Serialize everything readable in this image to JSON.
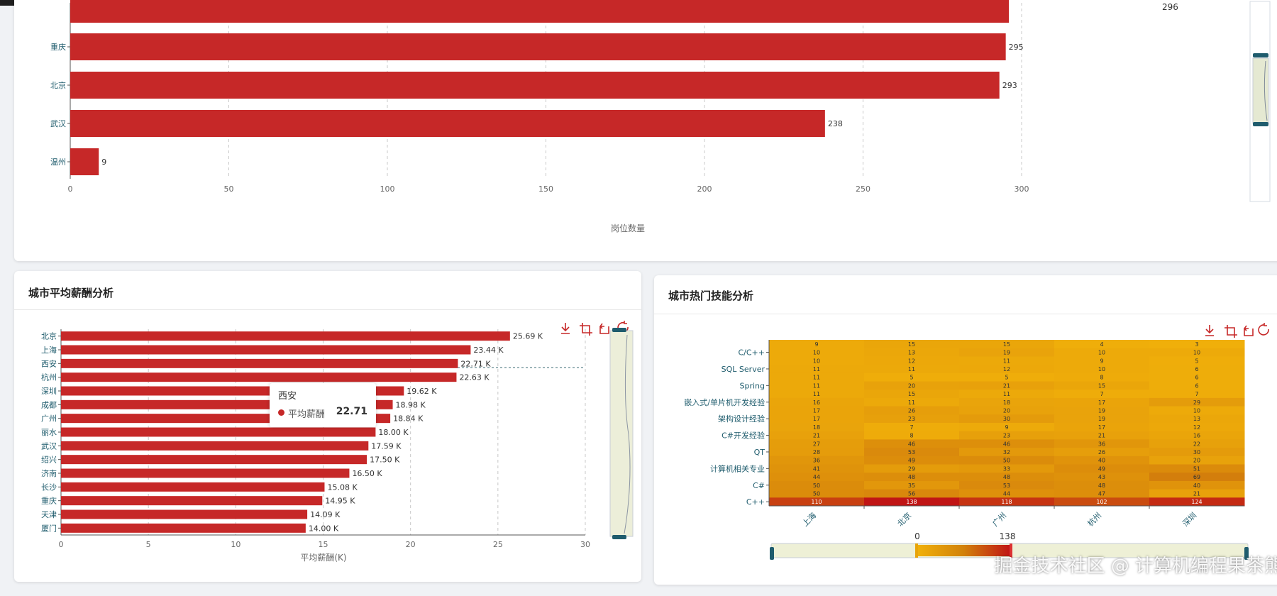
{
  "top_panel": {
    "partial_top_value": "296",
    "categories": [
      "重庆",
      "北京",
      "武汉",
      "温州"
    ],
    "values": [
      295,
      293,
      238,
      9
    ],
    "x_ticks": [
      "0",
      "50",
      "100",
      "150",
      "200",
      "250",
      "300"
    ],
    "x_label": "岗位数量",
    "bar_color": "#c62828"
  },
  "salary_panel": {
    "title": "城市平均薪酬分析",
    "cities": [
      "北京",
      "上海",
      "西安",
      "杭州",
      "深圳",
      "成都",
      "广州",
      "丽水",
      "武汉",
      "绍兴",
      "济南",
      "长沙",
      "重庆",
      "天津",
      "厦门"
    ],
    "values": [
      25.69,
      23.44,
      22.71,
      22.63,
      19.62,
      18.98,
      18.84,
      18.0,
      17.59,
      17.5,
      16.5,
      15.08,
      14.95,
      14.09,
      14.0
    ],
    "value_labels": [
      "25.69 K",
      "23.44 K",
      "22.71 K",
      "22.63 K",
      "19.62 K",
      "18.98 K",
      "18.84 K",
      "18.00 K",
      "17.59 K",
      "17.50 K",
      "16.50 K",
      "15.08 K",
      "14.95 K",
      "14.09 K",
      "14.00 K"
    ],
    "x_ticks": [
      "0",
      "5",
      "10",
      "15",
      "20",
      "25",
      "30"
    ],
    "x_label": "平均薪酬(K)",
    "tooltip": {
      "city": "西安",
      "series": "平均薪酬",
      "value": "22.71"
    }
  },
  "skills_panel": {
    "title": "城市热门技能分析",
    "y_labels": [
      "C/C++",
      "SQL Server",
      "Spring",
      "嵌入式/单片机开发经验",
      "架构设计经验",
      "C#开发经验",
      "QT",
      "计算机相关专业",
      "C#",
      "C++"
    ],
    "x_labels": [
      "上海",
      "北京",
      "广州",
      "杭州",
      "深圳"
    ],
    "rows": [
      [
        9,
        15,
        15,
        4,
        3
      ],
      [
        10,
        13,
        19,
        10,
        10
      ],
      [
        10,
        12,
        11,
        9,
        5
      ],
      [
        11,
        11,
        12,
        10,
        6
      ],
      [
        11,
        5,
        5,
        8,
        6
      ],
      [
        11,
        20,
        21,
        15,
        6
      ],
      [
        11,
        15,
        11,
        7,
        7
      ],
      [
        16,
        11,
        18,
        17,
        29
      ],
      [
        17,
        26,
        20,
        19,
        10
      ],
      [
        17,
        23,
        30,
        19,
        13
      ],
      [
        18,
        7,
        9,
        17,
        12
      ],
      [
        21,
        8,
        23,
        21,
        16
      ],
      [
        27,
        46,
        46,
        36,
        22
      ],
      [
        28,
        53,
        32,
        26,
        30
      ],
      [
        36,
        49,
        50,
        40,
        20
      ],
      [
        41,
        29,
        33,
        49,
        51
      ],
      [
        44,
        48,
        48,
        43,
        69
      ],
      [
        50,
        35,
        53,
        48,
        40
      ],
      [
        50,
        56,
        44,
        47,
        21
      ],
      [
        110,
        138,
        118,
        102,
        124
      ]
    ],
    "visual_map": {
      "min_label": "0",
      "max_label": "138"
    }
  },
  "watermark": "掘金技术社区 @ 计算机编程果茶熊"
}
